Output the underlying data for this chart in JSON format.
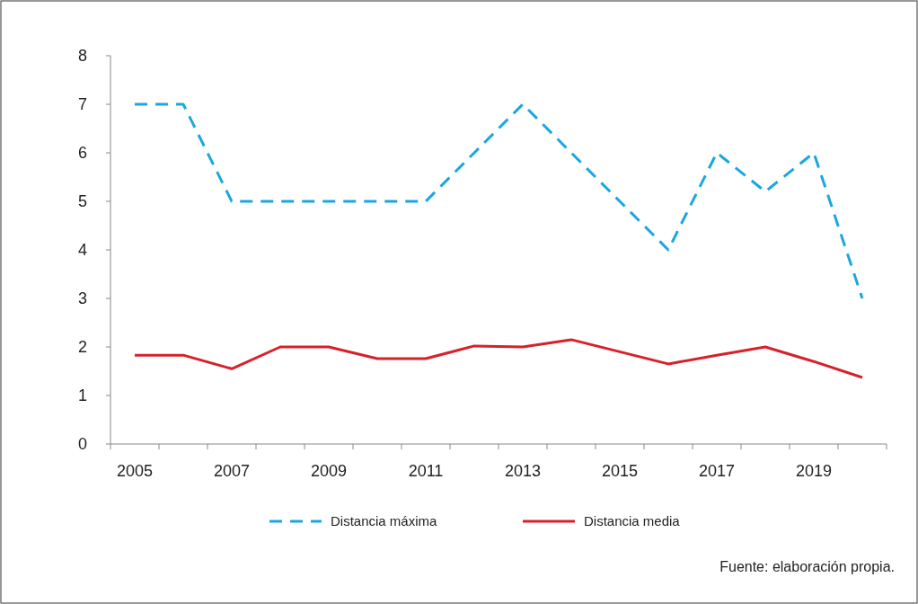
{
  "chart_data": {
    "type": "line",
    "categories": [
      "2005",
      null,
      "2007",
      null,
      "2009",
      null,
      "2011",
      null,
      "2013",
      null,
      "2015",
      null,
      "2017",
      null,
      "2019",
      null
    ],
    "series": [
      {
        "name": "Distancia máxima",
        "color": "#1aa7e0",
        "line_style": "dashed",
        "values": [
          7,
          7,
          5,
          5,
          5,
          5,
          5,
          6,
          7,
          6,
          5,
          4,
          6,
          5.2,
          6,
          3
        ]
      },
      {
        "name": "Distancia media",
        "color": "#d7212a",
        "line_style": "solid",
        "values": [
          1.83,
          1.83,
          1.55,
          2,
          2,
          1.76,
          1.76,
          2.02,
          2,
          2.15,
          1.9,
          1.65,
          1.83,
          2,
          1.7,
          1.37
        ]
      }
    ],
    "ylim": [
      0,
      8
    ],
    "yticks": [
      0,
      1,
      2,
      3,
      4,
      5,
      6,
      7,
      8
    ],
    "grid": false,
    "legend": "bottom",
    "marker": "none",
    "annotations": [
      "Fuente: elaboración propia."
    ]
  }
}
